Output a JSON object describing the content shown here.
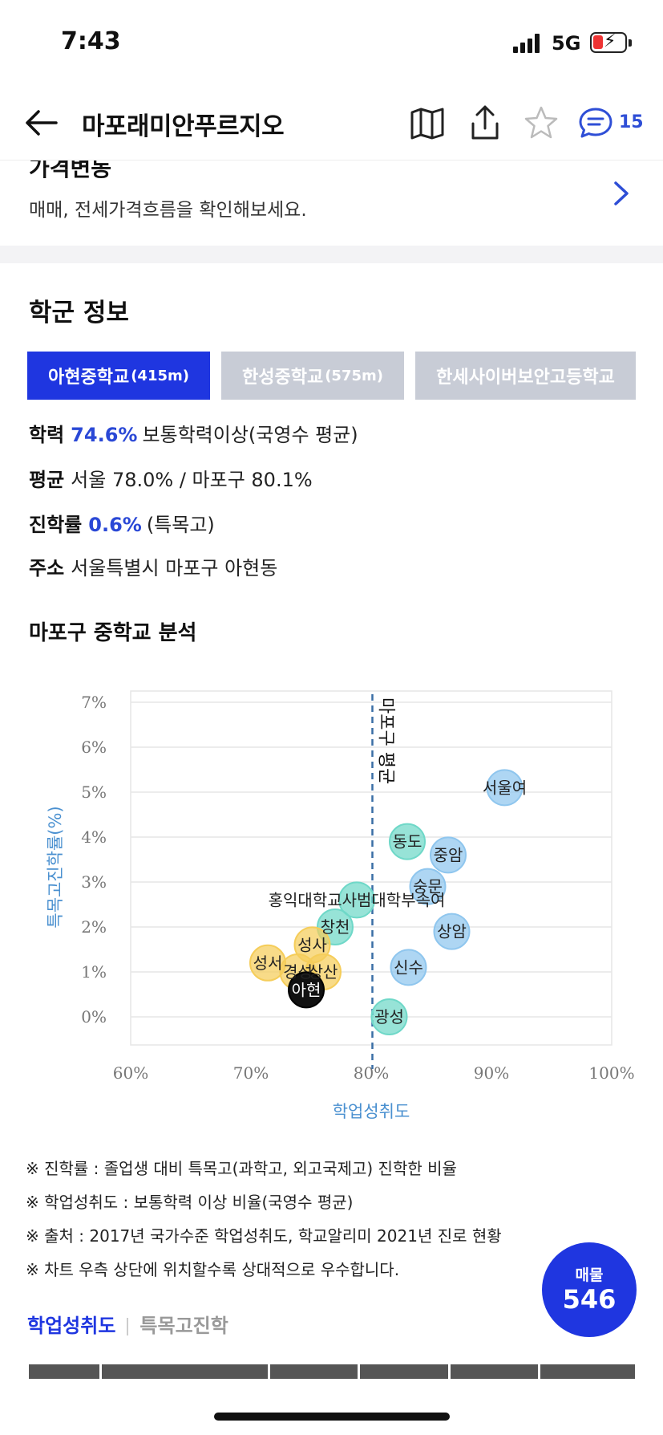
{
  "status_bar": {
    "time": "7:43",
    "network": "5G"
  },
  "header": {
    "title": "마포래미안푸르지오",
    "chat_count": "15"
  },
  "price_section": {
    "title": "가격변동",
    "description": "매매, 전세가격흐름을 확인해보세요."
  },
  "school_section": {
    "title": "학군 정보",
    "tabs": [
      {
        "name": "아현중학교",
        "distance": "(415m)",
        "active": true
      },
      {
        "name": "한성중학교",
        "distance": "(575m)",
        "active": false
      },
      {
        "name": "한세사이버보안고등학교",
        "distance": "",
        "active": false
      }
    ],
    "info": {
      "ability_key": "학력",
      "ability_value": "74.6%",
      "ability_desc": "보통학력이상(국영수 평균)",
      "average_key": "평균",
      "average_value": "서울 78.0% / 마포구 80.1%",
      "advance_key": "진학률",
      "advance_value": "0.6%",
      "advance_desc": "(특목고)",
      "address_key": "주소",
      "address_value": "서울특별시 마포구 아현동"
    }
  },
  "analysis": {
    "title": "마포구 중학교 분석"
  },
  "chart_data": {
    "type": "scatter",
    "xlabel": "학업성취도",
    "ylabel": "특목고진학률(%)",
    "xlim": [
      60,
      100
    ],
    "ylim": [
      0,
      7
    ],
    "x_ticks": [
      "60%",
      "70%",
      "80%",
      "90%",
      "100%"
    ],
    "y_ticks": [
      "0%",
      "1%",
      "2%",
      "3%",
      "4%",
      "5%",
      "6%",
      "7%"
    ],
    "reference_line": {
      "x": 80.1,
      "label": "마포구 평균"
    },
    "grid": true,
    "points": [
      {
        "label": "서울여",
        "x": 91.1,
        "y": 5.1,
        "color": "#8fc6ee"
      },
      {
        "label": "동도",
        "x": 83.0,
        "y": 3.9,
        "color": "#6fd8c8"
      },
      {
        "label": "중암",
        "x": 86.4,
        "y": 3.6,
        "color": "#8fc6ee"
      },
      {
        "label": "숭문",
        "x": 84.7,
        "y": 2.9,
        "color": "#8fc6ee"
      },
      {
        "label": "홍익대학교사범대학부속여",
        "x": 78.8,
        "y": 2.6,
        "color": "#6fd8c8"
      },
      {
        "label": "창천",
        "x": 77.0,
        "y": 2.0,
        "color": "#6fd8c8"
      },
      {
        "label": "상암",
        "x": 86.7,
        "y": 1.9,
        "color": "#8fc6ee"
      },
      {
        "label": "성사",
        "x": 75.1,
        "y": 1.6,
        "color": "#f5cd5a"
      },
      {
        "label": "성서",
        "x": 71.4,
        "y": 1.2,
        "color": "#f5cd5a"
      },
      {
        "label": "신수",
        "x": 83.1,
        "y": 1.1,
        "color": "#8fc6ee"
      },
      {
        "label": "경성",
        "x": 73.9,
        "y": 1.0,
        "color": "#f5cd5a"
      },
      {
        "label": "상산",
        "x": 76.0,
        "y": 1.0,
        "color": "#f5cd5a"
      },
      {
        "label": "아현",
        "x": 74.6,
        "y": 0.6,
        "color": "#111111"
      },
      {
        "label": "광성",
        "x": 81.5,
        "y": 0.0,
        "color": "#6fd8c8"
      }
    ]
  },
  "notes": [
    "※ 진학률 : 졸업생 대비 특목고(과학고, 외고국제고) 진학한 비율",
    "※ 학업성취도 : 보통학력 이상 비율(국영수 평균)",
    "※ 출처 : 2017년 국가수준 학업성취도, 학교알리미 2021년 진로 현황",
    "※ 차트 우측 상단에 위치할수록 상대적으로 우수합니다."
  ],
  "fab": {
    "label": "매물",
    "count": "546"
  },
  "bottom_tabs": [
    {
      "label": "학업성취도",
      "active": true
    },
    {
      "label": "특목고진학",
      "active": false
    }
  ],
  "colors": {
    "accent": "#1f36e0",
    "highlight": "#2a48d6"
  }
}
